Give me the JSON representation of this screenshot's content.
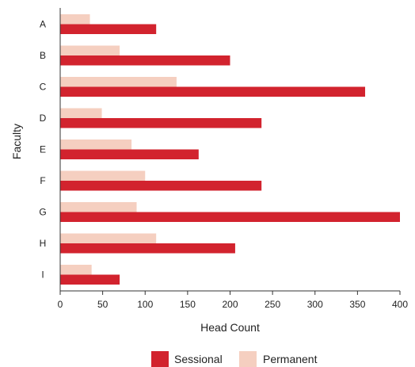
{
  "chart_data": {
    "type": "bar",
    "orientation": "horizontal",
    "categories": [
      "A",
      "B",
      "C",
      "D",
      "E",
      "F",
      "G",
      "H",
      "I"
    ],
    "series": [
      {
        "name": "Permanent",
        "color": "#f5cfc0",
        "values": [
          35,
          70,
          137,
          49,
          84,
          100,
          90,
          113,
          37
        ]
      },
      {
        "name": "Sessional",
        "color": "#d2232e",
        "values": [
          113,
          200,
          359,
          237,
          163,
          237,
          400,
          206,
          70
        ]
      }
    ],
    "legend_order": [
      "Sessional",
      "Permanent"
    ],
    "xlabel": "Head Count",
    "ylabel": "Faculty",
    "xlim": [
      0,
      400
    ],
    "xticks": [
      0,
      50,
      100,
      150,
      200,
      250,
      300,
      350,
      400
    ],
    "grid": false,
    "legend_position": "bottom-center"
  }
}
